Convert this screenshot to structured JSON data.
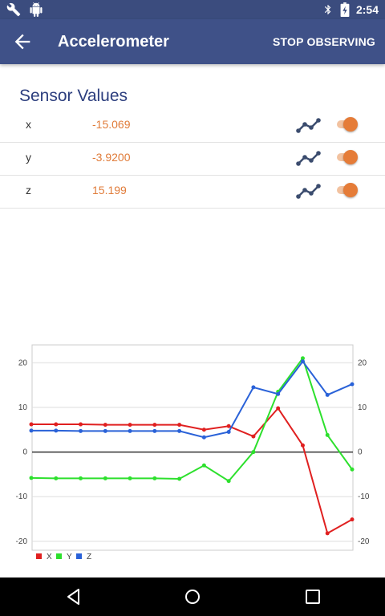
{
  "status_bar": {
    "time": "2:54",
    "icons": [
      "wrench-icon",
      "android-icon",
      "bluetooth-icon",
      "battery-charging-icon"
    ]
  },
  "app_bar": {
    "title": "Accelerometer",
    "action_label": "STOP OBSERVING",
    "back_icon": "arrow-back-icon"
  },
  "sensor_section": {
    "title": "Sensor Values",
    "rows": [
      {
        "axis": "x",
        "value": "-15.069",
        "graph_icon": "line-graph-icon",
        "toggle_on": true
      },
      {
        "axis": "y",
        "value": "-3.9200",
        "graph_icon": "line-graph-icon",
        "toggle_on": true
      },
      {
        "axis": "z",
        "value": "15.199",
        "graph_icon": "line-graph-icon",
        "toggle_on": true
      }
    ]
  },
  "colors": {
    "primary": "#3f5188",
    "accent": "#e57c38",
    "x": "#e02020",
    "y": "#2de02d",
    "z": "#2a62d8"
  },
  "chart_data": {
    "type": "line",
    "ylim": [
      -22,
      24
    ],
    "yticks": [
      20,
      10,
      0,
      -10,
      -20
    ],
    "grid": true,
    "legend_position": "bottom-left",
    "series": [
      {
        "name": "X",
        "color": "#e02020",
        "values": [
          6.2,
          6.2,
          6.2,
          6.1,
          6.1,
          6.1,
          6.1,
          5.0,
          5.8,
          3.5,
          9.8,
          1.5,
          -18.2,
          -15.1
        ]
      },
      {
        "name": "Y",
        "color": "#2de02d",
        "values": [
          -5.8,
          -5.9,
          -5.9,
          -5.9,
          -5.9,
          -5.9,
          -6.0,
          -3.0,
          -6.5,
          0,
          13.5,
          21.0,
          3.8,
          -3.9
        ]
      },
      {
        "name": "Z",
        "color": "#2a62d8",
        "values": [
          4.8,
          4.8,
          4.7,
          4.7,
          4.7,
          4.7,
          4.7,
          3.3,
          4.5,
          14.5,
          13.0,
          20.3,
          12.8,
          15.2
        ]
      }
    ]
  },
  "nav_bar": {
    "icons": [
      "back-triangle-icon",
      "home-circle-icon",
      "recents-square-icon"
    ]
  }
}
